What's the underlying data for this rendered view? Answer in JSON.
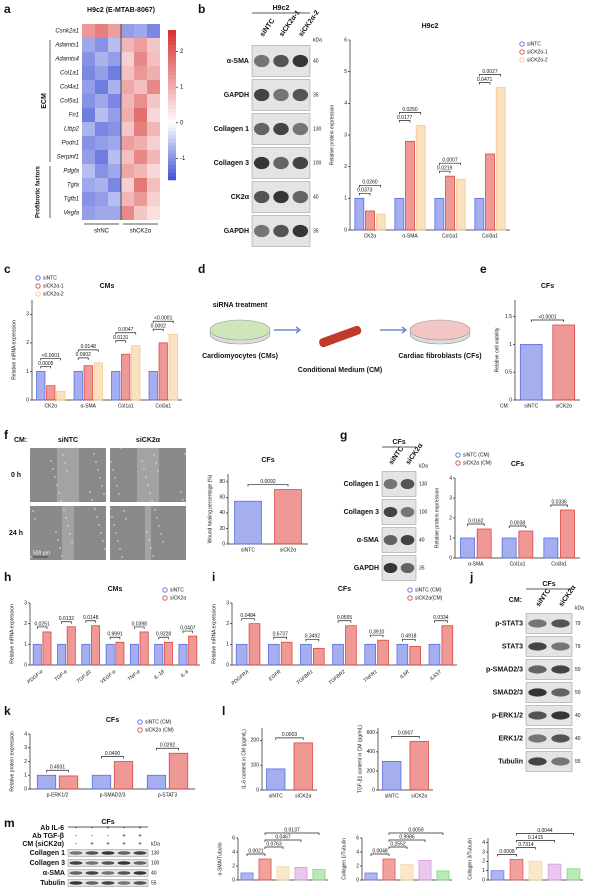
{
  "panel_labels": [
    "a",
    "b",
    "c",
    "d",
    "e",
    "f",
    "g",
    "h",
    "i",
    "j",
    "k",
    "l",
    "m"
  ],
  "heatmap": {
    "title": "H9c2 (E-MTAB-8067)",
    "genes": [
      "Csnk2a1",
      "Adamts1",
      "Adamts4",
      "Col1a1",
      "Col4a1",
      "Col5a1",
      "Fn1",
      "Ltbp2",
      "Podn1",
      "Serpinf1",
      "Pdgfa",
      "Tgfa",
      "Tgfb1",
      "Vegfa"
    ],
    "groups": [
      "ECM",
      "Profibrotic factors"
    ],
    "columns": [
      "shNC",
      "shCK2α"
    ],
    "values": [
      [
        1.3,
        1.6,
        1.2,
        -0.9,
        -0.8,
        -1.1
      ],
      [
        -0.8,
        -1.0,
        -0.6,
        0.9,
        1.2,
        0.7
      ],
      [
        -1.0,
        -0.7,
        -0.9,
        0.6,
        1.5,
        0.8
      ],
      [
        -1.1,
        -0.9,
        -1.2,
        0.8,
        1.3,
        1.0
      ],
      [
        -0.9,
        -1.2,
        -0.7,
        1.1,
        0.8,
        1.5
      ],
      [
        -1.0,
        -0.8,
        -1.1,
        0.9,
        1.4,
        0.7
      ],
      [
        -1.2,
        -0.6,
        -0.9,
        1.0,
        1.8,
        0.5
      ],
      [
        -0.7,
        -1.1,
        -1.0,
        0.7,
        1.6,
        0.9
      ],
      [
        -1.0,
        -0.9,
        -0.8,
        1.2,
        1.0,
        0.6
      ],
      [
        -0.9,
        -1.2,
        -0.6,
        0.8,
        1.5,
        0.9
      ],
      [
        -0.6,
        -1.0,
        -0.8,
        1.1,
        0.9,
        0.5
      ],
      [
        -0.8,
        -0.7,
        -1.1,
        0.6,
        1.7,
        0.8
      ],
      [
        -1.0,
        -0.9,
        -0.6,
        0.9,
        1.3,
        0.6
      ],
      [
        -0.9,
        -0.8,
        -0.8,
        1.5,
        0.7,
        0.4
      ]
    ],
    "colorbar_lim": [
      -1.6,
      2.6
    ],
    "colorbar_ticks": [
      2,
      1,
      0,
      -1
    ],
    "colors": [
      "#3f51d6",
      "#ffffff",
      "#d7302f"
    ]
  },
  "blots": {
    "b": {
      "title": "H9c2",
      "lanes": [
        "siNTC",
        "siCK2α-1",
        "siCK2α-2"
      ],
      "kda_unit": "kDa",
      "rows": [
        {
          "name": "α-SMA",
          "kda": "40"
        },
        {
          "name": "GAPDH",
          "kda": "35"
        },
        {
          "name": "Collagen 1",
          "kda": "130"
        },
        {
          "name": "Collagen 3",
          "kda": "100"
        },
        {
          "name": "CK2α",
          "kda": "40"
        },
        {
          "name": "GAPDH",
          "kda": "35"
        }
      ]
    },
    "g": {
      "title": "CFs",
      "lanes": [
        "siNTC",
        "siCK2α"
      ],
      "kda_unit": "kDa",
      "rows": [
        {
          "name": "Collagen 1",
          "kda": "130"
        },
        {
          "name": "Collagen 3",
          "kda": "100"
        },
        {
          "name": "α-SMA",
          "kda": "40"
        },
        {
          "name": "GAPDH",
          "kda": "35"
        }
      ]
    },
    "j": {
      "title": "CFs",
      "prefix": "CM:",
      "lanes": [
        "siNTC",
        "siCK2α"
      ],
      "kda_unit": "kDa",
      "rows": [
        {
          "name": "p-STAT3",
          "kda": "79"
        },
        {
          "name": "STAT3",
          "kda": "79"
        },
        {
          "name": "p-SMAD2/3",
          "kda": "50"
        },
        {
          "name": "SMAD2/3",
          "kda": "50"
        },
        {
          "name": "p-ERK1/2",
          "kda": "40"
        },
        {
          "name": "ERK1/2",
          "kda": "40"
        },
        {
          "name": "Tubulin",
          "kda": "55"
        }
      ]
    },
    "m": {
      "title": "CFs",
      "kda_unit": "kDa",
      "treatments": [
        {
          "name": "Ab IL-6",
          "marks": [
            "-",
            "-",
            "+",
            "-",
            "+"
          ]
        },
        {
          "name": "Ab TGF-β",
          "marks": [
            "-",
            "-",
            "-",
            "+",
            "+"
          ]
        },
        {
          "name": "CM (siCK2α)",
          "marks": [
            "-",
            "+",
            "+",
            "+",
            "+"
          ]
        }
      ],
      "rows": [
        {
          "name": "Collagen 1",
          "kda": "130"
        },
        {
          "name": "Collagen 3",
          "kda": "100"
        },
        {
          "name": "α-SMA",
          "kda": "40"
        },
        {
          "name": "Tubulin",
          "kda": "55"
        }
      ]
    }
  },
  "diagram": {
    "step1": "siRNA treatment",
    "cells1": "Cardiomyocytes (CMs)",
    "medium": "Conditional Medium (CM)",
    "cells2": "Cardiac fibroblasts (CFs)"
  },
  "wound": {
    "prefix": "CM:",
    "columns": [
      "siNTC",
      "siCK2α"
    ],
    "rows": [
      "0 h",
      "24 h"
    ],
    "scale": "500 μm"
  },
  "chart_data": [
    {
      "type": "bar",
      "title": "H9c2",
      "ylabel": "Relative protein expression",
      "categories": [
        "CK2α",
        "α-SMA",
        "Col1a1",
        "Col3a1"
      ],
      "series": [
        {
          "name": "siNTC",
          "color": "#5b6ee1",
          "values": [
            1,
            1,
            1,
            1
          ]
        },
        {
          "name": "siCK2α-1",
          "color": "#e0463f",
          "values": [
            0.6,
            2.8,
            1.7,
            2.4
          ]
        },
        {
          "name": "siCK2α-2",
          "color": "#f5c98a",
          "values": [
            0.5,
            3.3,
            1.6,
            4.5
          ]
        }
      ],
      "ylim": [
        0,
        6
      ],
      "yticks": [
        0,
        1,
        2,
        3,
        4,
        5,
        6
      ],
      "pvalues": [
        "0.0373",
        "0.0260",
        "0.0177",
        "0.0250",
        "0.0219",
        "0.0007",
        "0.0471",
        "0.0027"
      ]
    },
    {
      "type": "bar",
      "title": "CMs",
      "ylabel": "Relative mRNA expression",
      "categories": [
        "CK2α",
        "α-SMA",
        "Col1a1",
        "Col3a1"
      ],
      "series": [
        {
          "name": "siNTC",
          "color": "#5b6ee1",
          "values": [
            1,
            1,
            1,
            1
          ]
        },
        {
          "name": "siCK2α-1",
          "color": "#e0463f",
          "values": [
            0.5,
            1.2,
            1.6,
            2.0
          ]
        },
        {
          "name": "siCK2α-2",
          "color": "#f5c98a",
          "values": [
            0.3,
            1.3,
            1.9,
            2.3
          ]
        }
      ],
      "ylim": [
        0,
        3.5
      ],
      "yticks": [
        0,
        1,
        2,
        3
      ],
      "pvalues": [
        "0.0005",
        "<0.0001",
        "0.0902",
        "0.0148",
        "0.0131",
        "0.0047",
        "0.0002",
        "<0.0001"
      ]
    },
    {
      "type": "bar",
      "title": "CFs",
      "ylabel": "Relative cell viability",
      "x_prefix": "CM:",
      "categories": [
        "siNTC",
        "siCK2α"
      ],
      "series": [
        {
          "values": [
            1,
            1.35
          ]
        }
      ],
      "colors": [
        "#5b6ee1",
        "#e0463f"
      ],
      "ylim": [
        0,
        1.8
      ],
      "yticks": [
        0,
        0.5,
        1,
        1.5
      ],
      "pvalues": [
        "<0.0001"
      ]
    },
    {
      "type": "bar",
      "title": "CFs",
      "ylabel": "Wound healing percentage (%)",
      "categories": [
        "siNTC",
        "siCK2α"
      ],
      "series": [
        {
          "values": [
            55,
            70
          ]
        }
      ],
      "colors": [
        "#5b6ee1",
        "#e0463f"
      ],
      "ylim": [
        0,
        90
      ],
      "yticks": [
        0,
        20,
        40,
        60,
        80
      ],
      "pvalues": [
        "0.0092"
      ]
    },
    {
      "type": "bar",
      "title": "CFs",
      "ylabel": "Relative protein expression",
      "categories": [
        "α-SMA",
        "Col1a1",
        "Col3a1"
      ],
      "series": [
        {
          "name": "siNTC (CM)",
          "color": "#5b6ee1",
          "values": [
            1,
            1,
            1
          ]
        },
        {
          "name": "siCK2α (CM)",
          "color": "#e0463f",
          "values": [
            1.45,
            1.35,
            2.4
          ]
        }
      ],
      "ylim": [
        0,
        4
      ],
      "yticks": [
        0,
        1,
        2,
        3,
        4
      ],
      "pvalues": [
        "0.0162",
        "0.0038",
        "0.0336"
      ]
    },
    {
      "type": "bar",
      "title": "CMs",
      "ylabel": "Relative mRNA expression",
      "categories": [
        "PDGF-α",
        "TGF-α",
        "TGF-β1",
        "VEGF-α",
        "TNF-α",
        "IL-1β",
        "IL-6"
      ],
      "series": [
        {
          "name": "siNTC",
          "color": "#5b6ee1",
          "values": [
            1,
            1,
            1,
            1,
            1,
            1,
            1
          ]
        },
        {
          "name": "siCK2α",
          "color": "#e0463f",
          "values": [
            1.6,
            1.85,
            1.9,
            1.1,
            1.6,
            1.1,
            1.4
          ]
        }
      ],
      "ylim": [
        0,
        3
      ],
      "yticks": [
        0,
        1,
        2,
        3
      ],
      "pvalues": [
        "0.0251",
        "0.0132",
        "0.0148",
        "0.9991",
        "0.0398",
        "0.9228",
        "0.0407"
      ]
    },
    {
      "type": "bar",
      "title": "CFs",
      "ylabel": "Relative mRNA expression",
      "categories": [
        "PDGFRA",
        "EGFR",
        "TGFBR1",
        "TGFBR2",
        "TNFR1",
        "IL6R",
        "IL6ST"
      ],
      "series": [
        {
          "name": "siNTC (CM)",
          "color": "#5b6ee1",
          "values": [
            1,
            1,
            1,
            1,
            1,
            1,
            1
          ]
        },
        {
          "name": "siCK2α(CM)",
          "color": "#e0463f",
          "values": [
            2.0,
            1.1,
            0.8,
            1.9,
            1.2,
            0.9,
            1.9
          ]
        }
      ],
      "ylim": [
        0,
        3
      ],
      "yticks": [
        0,
        1,
        2,
        3
      ],
      "pvalues": [
        "0.0484",
        "0.6737",
        "0.3492",
        "0.0555",
        "0.3910",
        "0.4918",
        "0.0334"
      ]
    },
    {
      "type": "bar",
      "title": "CFs",
      "ylabel": "Relative protein expression",
      "categories": [
        "p-ERK1/2",
        "p-SMAD2/3",
        "p-STAT3"
      ],
      "series": [
        {
          "name": "siNTC (CM)",
          "color": "#5b6ee1",
          "values": [
            1,
            1,
            1
          ]
        },
        {
          "name": "siCK2α (CM)",
          "color": "#e0463f",
          "values": [
            0.95,
            2.0,
            2.6
          ]
        }
      ],
      "ylim": [
        0,
        4
      ],
      "yticks": [
        0,
        1,
        2,
        3,
        4
      ],
      "pvalues": [
        "0.4931",
        "0.0400",
        "0.0292"
      ]
    },
    {
      "type": "bar",
      "ylabel": "IL-6 content in CM (pg/mL)",
      "categories": [
        "siNTC",
        "siCK2α"
      ],
      "series": [
        {
          "values": [
            85,
            190
          ]
        }
      ],
      "colors": [
        "#5b6ee1",
        "#e0463f"
      ],
      "ylim": [
        0,
        250
      ],
      "yticks": [
        0,
        100,
        200
      ],
      "pvalues": [
        "0.0003"
      ]
    },
    {
      "type": "bar",
      "ylabel": "TGF-β1 content in CM (pg/mL)",
      "categories": [
        "siNTC",
        "siCK2α"
      ],
      "series": [
        {
          "values": [
            300,
            510
          ]
        }
      ],
      "colors": [
        "#5b6ee1",
        "#e0463f"
      ],
      "ylim": [
        0,
        650
      ],
      "yticks": [
        0,
        200,
        400,
        600
      ],
      "pvalues": [
        "0.0007"
      ]
    },
    {
      "type": "bar",
      "ylabel": "α-SMA/Tubulin",
      "categories": [
        null,
        null,
        null,
        null,
        null
      ],
      "series": [
        {
          "values": [
            1,
            3.0,
            1.9,
            1.8,
            1.5
          ]
        }
      ],
      "colors": [
        "#6d7be8",
        "#e6564e",
        "#f7d59c",
        "#d99ae0",
        "#7fd97a"
      ],
      "ylim": [
        0,
        6
      ],
      "yticks": [
        0,
        2,
        4,
        6
      ],
      "pvalues": [
        "0.0021",
        "0.0763",
        "0.0467",
        "0.0137"
      ]
    },
    {
      "type": "bar",
      "ylabel": "Collagen 1/Tubulin",
      "categories": [
        null,
        null,
        null,
        null,
        null
      ],
      "series": [
        {
          "values": [
            1,
            3.0,
            2.2,
            2.8,
            1.3
          ]
        }
      ],
      "colors": [
        "#6d7be8",
        "#e6564e",
        "#f7d59c",
        "#d99ae0",
        "#7fd97a"
      ],
      "ylim": [
        0,
        6
      ],
      "yticks": [
        0,
        2,
        4,
        6
      ],
      "pvalues": [
        "0.0048",
        "0.2552",
        "0.9986",
        "0.0059"
      ]
    },
    {
      "type": "bar",
      "ylabel": "Collagen 3/Tubulin",
      "categories": [
        null,
        null,
        null,
        null,
        null
      ],
      "series": [
        {
          "values": [
            1,
            2.2,
            2.0,
            1.7,
            1.2
          ]
        }
      ],
      "colors": [
        "#6d7be8",
        "#e6564e",
        "#f7d59c",
        "#d99ae0",
        "#7fd97a"
      ],
      "ylim": [
        0,
        4.5
      ],
      "yticks": [
        0,
        1,
        2,
        3,
        4
      ],
      "pvalues": [
        "0.0008",
        "0.7314",
        "0.1415",
        "0.0044"
      ]
    }
  ]
}
